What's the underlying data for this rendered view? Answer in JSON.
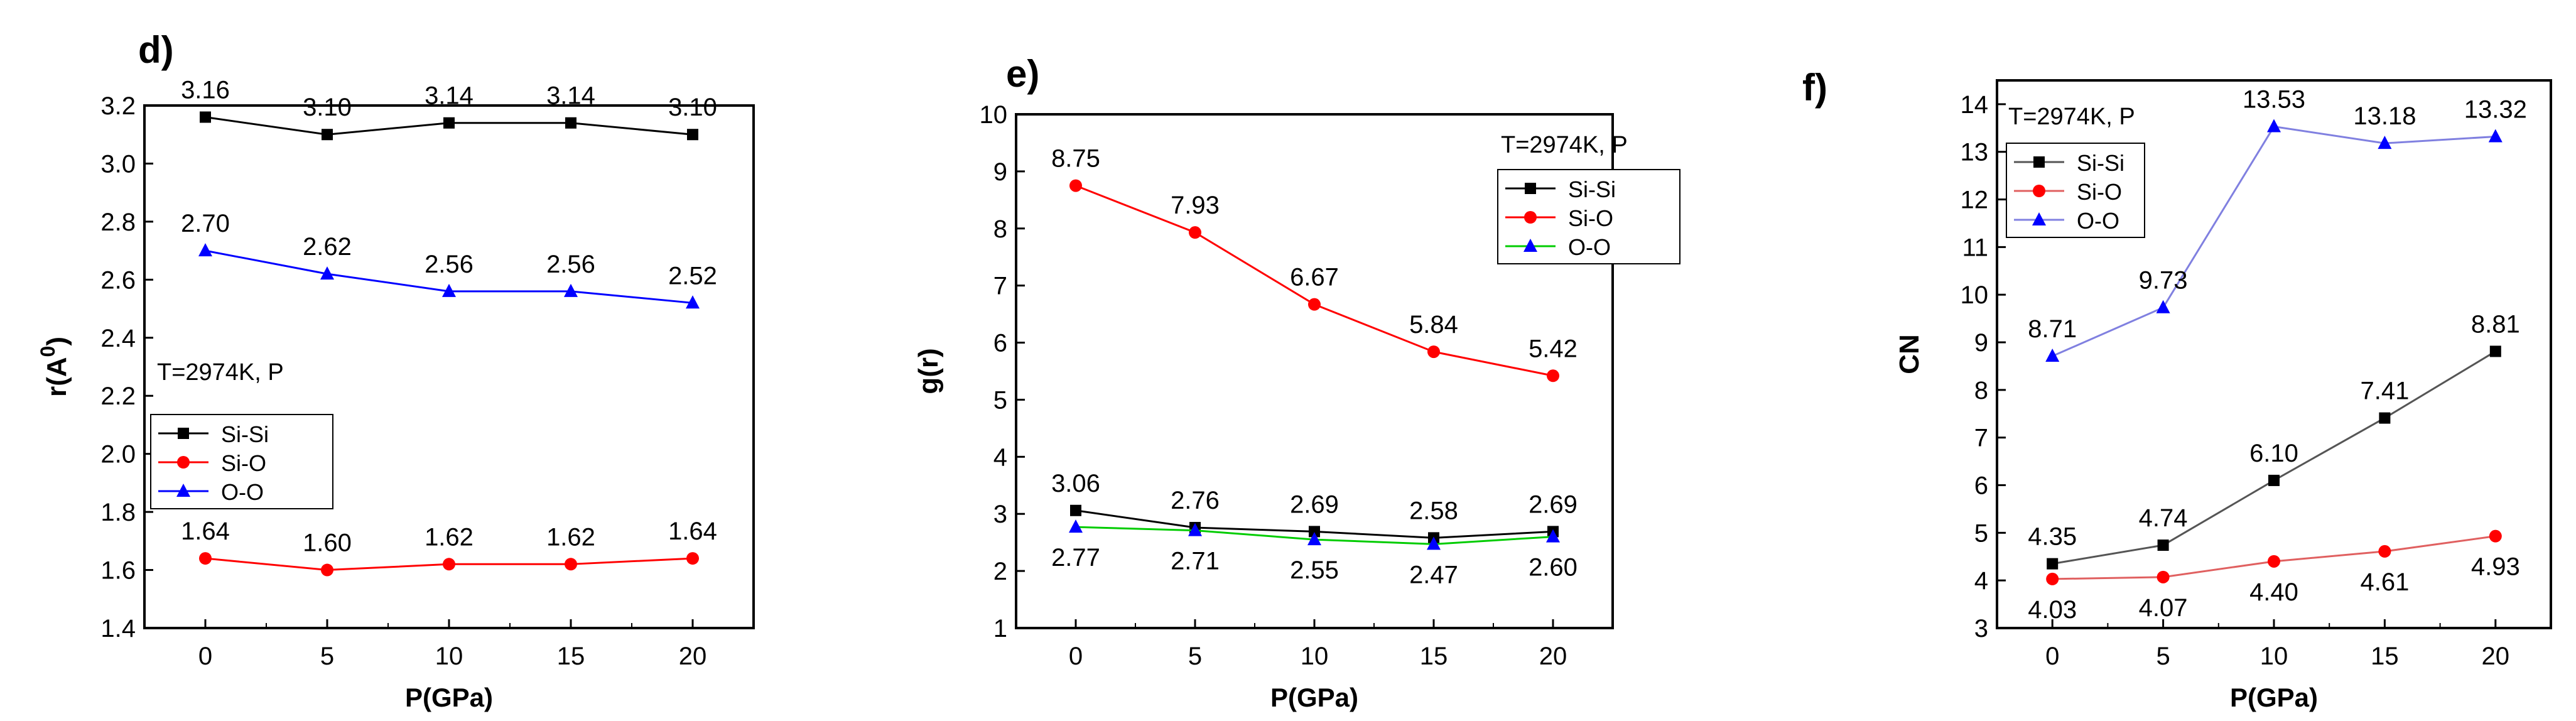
{
  "chart_data": [
    {
      "panel_label": "d)",
      "type": "line",
      "xlabel": "P(GPa)",
      "ylabel_base": "r(A",
      "ylabel_sup": "0",
      "ylabel_close": ")",
      "x": [
        0,
        5,
        10,
        15,
        20
      ],
      "xticks": [
        "0",
        "5",
        "10",
        "15",
        "20"
      ],
      "xlim": [
        -2.5,
        22.5
      ],
      "ylim": [
        1.4,
        3.2
      ],
      "yticks": [
        "1.4",
        "1.6",
        "1.8",
        "2.0",
        "2.2",
        "2.4",
        "2.6",
        "2.8",
        "3.0",
        "3.2"
      ],
      "annotation": "T=2974K, P",
      "legend_position": "middle-left",
      "series": [
        {
          "name": "Si-Si",
          "color": "#000000",
          "marker": "square",
          "label_side": "above",
          "values": [
            3.16,
            3.1,
            3.14,
            3.14,
            3.1
          ],
          "labels": [
            "3.16",
            "3.10",
            "3.14",
            "3.14",
            "3.10"
          ]
        },
        {
          "name": "Si-O",
          "color": "#ff0000",
          "marker": "circle",
          "label_side": "above",
          "values": [
            1.64,
            1.6,
            1.62,
            1.62,
            1.64
          ],
          "labels": [
            "1.64",
            "1.60",
            "1.62",
            "1.62",
            "1.64"
          ]
        },
        {
          "name": "O-O",
          "color": "#0000ff",
          "marker": "triangle",
          "label_side": "above",
          "values": [
            2.7,
            2.62,
            2.56,
            2.56,
            2.52
          ],
          "labels": [
            "2.70",
            "2.62",
            "2.56",
            "2.56",
            "2.52"
          ]
        }
      ]
    },
    {
      "panel_label": "e)",
      "type": "line",
      "xlabel": "P(GPa)",
      "ylabel_base": "g(r)",
      "ylabel_sup": "",
      "ylabel_close": "",
      "x": [
        0,
        5,
        10,
        15,
        20
      ],
      "xticks": [
        "0",
        "5",
        "10",
        "15",
        "20"
      ],
      "xlim": [
        -2.5,
        22.5
      ],
      "ylim": [
        1,
        10
      ],
      "yticks": [
        "1",
        "2",
        "3",
        "4",
        "5",
        "6",
        "7",
        "8",
        "9",
        "10"
      ],
      "annotation": "T=2974K, P",
      "legend_position": "top-right",
      "series": [
        {
          "name": "Si-Si",
          "color": "#000000",
          "marker": "square",
          "label_side": "above",
          "values": [
            3.06,
            2.76,
            2.69,
            2.58,
            2.69
          ],
          "labels": [
            "3.06",
            "2.76",
            "2.69",
            "2.58",
            "2.69"
          ]
        },
        {
          "name": "Si-O",
          "color": "#ff0000",
          "marker": "circle",
          "label_side": "above",
          "values": [
            8.75,
            7.93,
            6.67,
            5.84,
            5.42
          ],
          "labels": [
            "8.75",
            "7.93",
            "6.67",
            "5.84",
            "5.42"
          ]
        },
        {
          "name": "O-O",
          "color": "#00cc00",
          "marker_color": "#0000ff",
          "marker": "triangle",
          "label_side": "below",
          "values": [
            2.77,
            2.71,
            2.55,
            2.47,
            2.6
          ],
          "labels": [
            "2.77",
            "2.71",
            "2.55",
            "2.47",
            "2.60"
          ]
        }
      ]
    },
    {
      "panel_label": "f)",
      "type": "line",
      "xlabel": "P(GPa)",
      "ylabel_base": "CN",
      "ylabel_sup": "",
      "ylabel_close": "",
      "x": [
        0,
        5,
        10,
        15,
        20
      ],
      "xticks": [
        "0",
        "5",
        "10",
        "15",
        "20"
      ],
      "xlim": [
        -2.5,
        22.5
      ],
      "ylim": [
        3,
        14.5
      ],
      "yticks": [
        "3",
        "4",
        "5",
        "6",
        "7",
        "8",
        "9",
        "10",
        "11",
        "12",
        "13",
        "14"
      ],
      "annotation": "T=2974K, P",
      "legend_position": "top-left",
      "series": [
        {
          "name": "Si-Si",
          "color": "#000000",
          "line_color": "#555555",
          "marker": "square",
          "label_side": "above",
          "values": [
            4.35,
            4.74,
            6.1,
            7.41,
            8.81
          ],
          "labels": [
            "4.35",
            "4.74",
            "6.10",
            "7.41",
            "8.81"
          ]
        },
        {
          "name": "Si-O",
          "color": "#ff0000",
          "line_color": "#e06060",
          "marker": "circle",
          "label_side": "below",
          "values": [
            4.03,
            4.07,
            4.4,
            4.61,
            4.93
          ],
          "labels": [
            "4.03",
            "4.07",
            "4.40",
            "4.61",
            "4.93"
          ]
        },
        {
          "name": "O-O",
          "color": "#0000ff",
          "line_color": "#8080e0",
          "marker": "triangle",
          "label_side": "above",
          "values": [
            8.71,
            9.73,
            13.53,
            13.18,
            13.32
          ],
          "labels": [
            "8.71",
            "9.73",
            "13.53",
            "13.18",
            "13.32"
          ]
        }
      ]
    }
  ]
}
